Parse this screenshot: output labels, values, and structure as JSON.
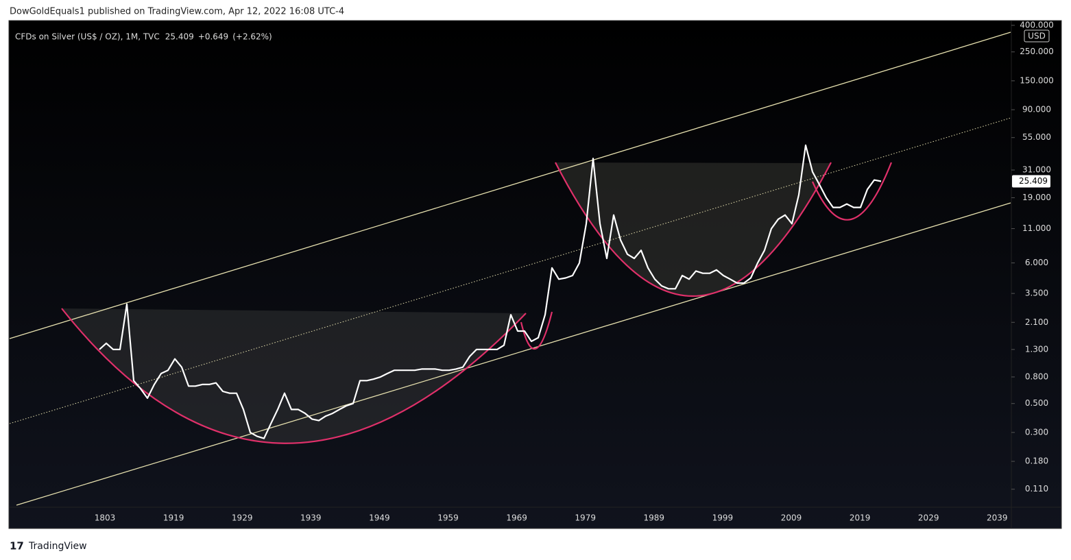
{
  "header": {
    "text": "DowGoldEquals1 published on TradingView.com, Apr 12, 2022 16:08 UTC-4"
  },
  "footer": {
    "brand": "TradingView"
  },
  "chart_data": {
    "type": "line",
    "title": "CFDs on Silver (US$ / OZ), 1M, TVC",
    "change": "+0.649",
    "change_pct": "(+2.62%)",
    "currency": "USD",
    "log_scale": true,
    "color": "#ffffff",
    "xtick_labels": [
      "1803",
      "1919",
      "1929",
      "1939",
      "1949",
      "1959",
      "1969",
      "1979",
      "1989",
      "1999",
      "2009",
      "2019",
      "2029",
      "2039"
    ],
    "ylim": [
      0.08,
      435
    ],
    "yticks": [
      {
        "value": 400,
        "label": "400.000"
      },
      {
        "value": 250,
        "label": "250.000"
      },
      {
        "value": 150,
        "label": "150.000"
      },
      {
        "value": 90,
        "label": "90.000"
      },
      {
        "value": 55,
        "label": "55.000"
      },
      {
        "value": 31,
        "label": "31.000"
      },
      {
        "value": 19,
        "label": "19.000"
      },
      {
        "value": 11,
        "label": "11.000"
      },
      {
        "value": 6,
        "label": "6.000"
      },
      {
        "value": 3.5,
        "label": "3.500"
      },
      {
        "value": 2.1,
        "label": "2.100"
      },
      {
        "value": 1.3,
        "label": "1.300"
      },
      {
        "value": 0.8,
        "label": "0.800"
      },
      {
        "value": 0.5,
        "label": "0.500"
      },
      {
        "value": 0.3,
        "label": "0.300"
      },
      {
        "value": 0.18,
        "label": "0.180"
      },
      {
        "value": 0.11,
        "label": "0.110"
      }
    ],
    "values": [
      1.3,
      1.45,
      1.3,
      1.3,
      2.9,
      0.75,
      0.65,
      0.55,
      0.7,
      0.85,
      0.9,
      1.1,
      0.95,
      0.68,
      0.68,
      0.7,
      0.7,
      0.72,
      0.62,
      0.6,
      0.6,
      0.45,
      0.3,
      0.28,
      0.27,
      0.35,
      0.45,
      0.6,
      0.45,
      0.45,
      0.42,
      0.38,
      0.37,
      0.4,
      0.42,
      0.45,
      0.48,
      0.5,
      0.75,
      0.75,
      0.77,
      0.8,
      0.85,
      0.9,
      0.9,
      0.9,
      0.9,
      0.92,
      0.92,
      0.92,
      0.9,
      0.9,
      0.92,
      0.95,
      1.15,
      1.3,
      1.3,
      1.3,
      1.3,
      1.4,
      2.4,
      1.8,
      1.8,
      1.5,
      1.6,
      2.4,
      5.5,
      4.5,
      4.6,
      4.8,
      6,
      12,
      38,
      12,
      6.5,
      14,
      9,
      7,
      6.5,
      7.5,
      5.5,
      4.5,
      4,
      3.8,
      3.8,
      4.8,
      4.5,
      5.2,
      5,
      5,
      5.3,
      4.8,
      4.5,
      4.2,
      4.2,
      4.6,
      6,
      7.5,
      11,
      13,
      14,
      12,
      20,
      48,
      30,
      24,
      19,
      16,
      16,
      17,
      16,
      16,
      22,
      26,
      25.409
    ]
  }
}
